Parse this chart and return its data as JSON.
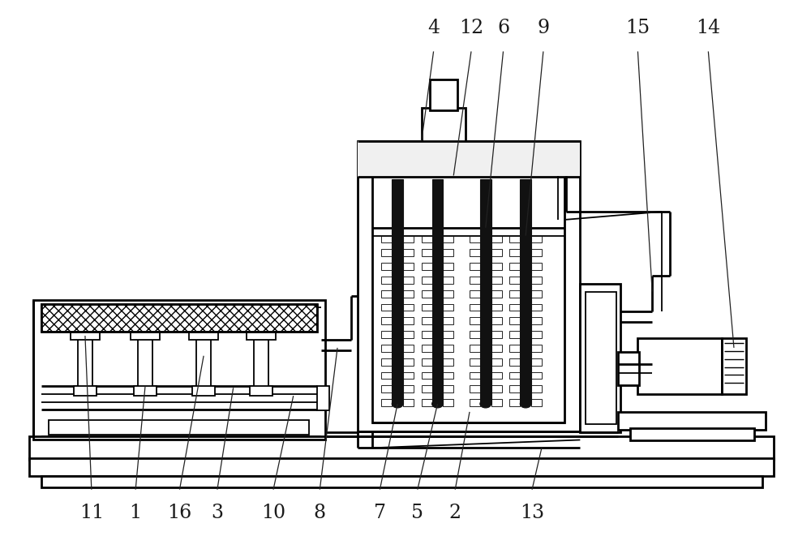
{
  "bg_color": "#ffffff",
  "lc": "#000000",
  "label_color": "#1a1a1a",
  "label_fontsize": 17,
  "figsize": [
    10.0,
    6.77
  ],
  "dpi": 100,
  "labels_top": [
    [
      "4",
      535,
      42
    ],
    [
      "12",
      582,
      42
    ],
    [
      "6",
      622,
      42
    ],
    [
      "9",
      672,
      42
    ],
    [
      "15",
      790,
      42
    ],
    [
      "14",
      878,
      42
    ]
  ],
  "labels_bottom": [
    [
      "11",
      108,
      625
    ],
    [
      "1",
      163,
      625
    ],
    [
      "16",
      218,
      625
    ],
    [
      "3",
      265,
      625
    ],
    [
      "10",
      335,
      625
    ],
    [
      "8",
      393,
      625
    ],
    [
      "7",
      468,
      625
    ],
    [
      "5",
      515,
      625
    ],
    [
      "2",
      562,
      625
    ],
    [
      "13",
      658,
      625
    ]
  ]
}
